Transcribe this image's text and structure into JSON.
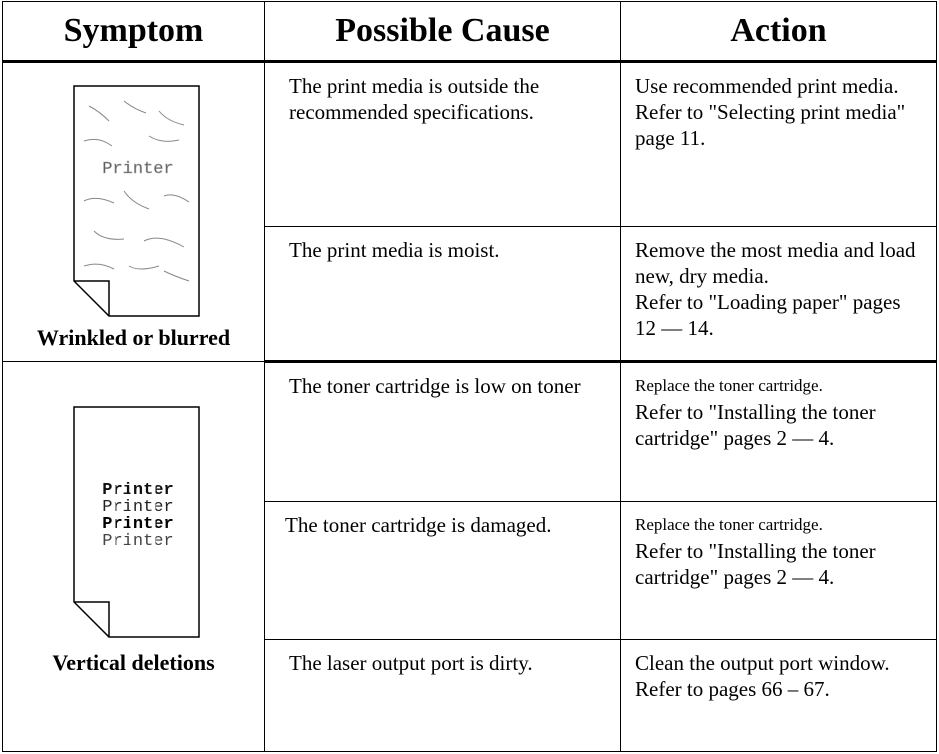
{
  "table": {
    "headers": [
      "Symptom",
      "Possible Cause",
      "Action"
    ],
    "groups": [
      {
        "symptom": {
          "label": "Wrinkled or blurred",
          "sample_lines": [
            "Printer"
          ]
        },
        "rows": [
          {
            "cause": "The print media is outside the recommended specifications.",
            "action": [
              "Use recommended print media.",
              "Refer to \"Selecting print media\" page 11."
            ]
          },
          {
            "cause": "The print media is moist.",
            "action": [
              "Remove the most media and load new, dry media.",
              "Refer to \"Loading paper\" pages 12 — 14."
            ]
          }
        ]
      },
      {
        "symptom": {
          "label": "Vertical deletions",
          "sample_lines": [
            "Printer",
            "Printer",
            "Printer",
            "Printer"
          ]
        },
        "rows": [
          {
            "cause": "The toner cartridge is low on toner",
            "action": [
              "Replace the toner cartridge.",
              "Refer to \"Installing the toner cartridge\" pages 2 — 4."
            ]
          },
          {
            "cause": "The toner cartridge is damaged.",
            "action": [
              "Replace the toner cartridge.",
              "Refer to \"Installing the toner cartridge\" pages 2 — 4."
            ]
          },
          {
            "cause": "The laser output port is dirty.",
            "action": [
              "Clean the output port window.  Refer to pages 66 – 67."
            ]
          }
        ]
      }
    ]
  }
}
